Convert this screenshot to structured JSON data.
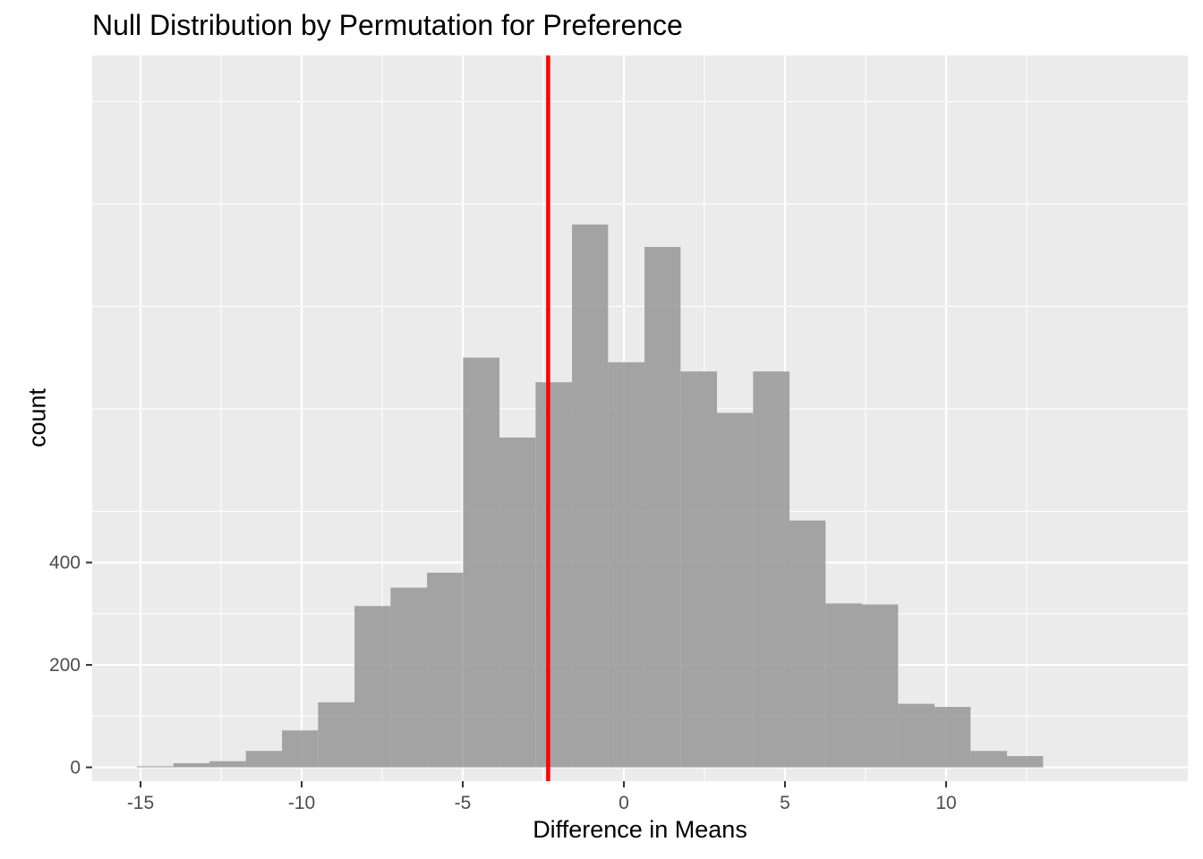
{
  "chart_data": {
    "type": "bar",
    "title": "Null Distribution by Permutation for Preference",
    "xlabel": "Difference in Means",
    "ylabel": "count",
    "xlim": [
      -16.5,
      17.5
    ],
    "ylim": [
      -27,
      1390
    ],
    "x_ticks": [
      -15,
      -10,
      -5,
      0,
      5,
      10
    ],
    "x_tick_labels": [
      "-15",
      "-10",
      "-5",
      "0",
      "5",
      "10"
    ],
    "y_ticks": [
      0,
      200,
      400
    ],
    "y_tick_labels": [
      "0",
      "200",
      "400"
    ],
    "grid": true,
    "bin_width": 1.125,
    "bins": [
      {
        "x0": -15.11,
        "x1": -13.98,
        "count": 2
      },
      {
        "x0": -13.98,
        "x1": -12.86,
        "count": 8
      },
      {
        "x0": -12.86,
        "x1": -11.73,
        "count": 12
      },
      {
        "x0": -11.73,
        "x1": -10.61,
        "count": 32
      },
      {
        "x0": -10.61,
        "x1": -9.49,
        "count": 72
      },
      {
        "x0": -9.49,
        "x1": -8.36,
        "count": 127
      },
      {
        "x0": -8.36,
        "x1": -7.24,
        "count": 315
      },
      {
        "x0": -7.24,
        "x1": -6.11,
        "count": 351
      },
      {
        "x0": -6.11,
        "x1": -4.99,
        "count": 380
      },
      {
        "x0": -4.99,
        "x1": -3.86,
        "count": 800
      },
      {
        "x0": -3.86,
        "x1": -2.74,
        "count": 644
      },
      {
        "x0": -2.74,
        "x1": -1.61,
        "count": 752
      },
      {
        "x0": -1.61,
        "x1": -0.49,
        "count": 1060
      },
      {
        "x0": -0.49,
        "x1": 0.64,
        "count": 791
      },
      {
        "x0": 0.64,
        "x1": 1.76,
        "count": 1016
      },
      {
        "x0": 1.76,
        "x1": 2.89,
        "count": 773
      },
      {
        "x0": 2.89,
        "x1": 4.01,
        "count": 692
      },
      {
        "x0": 4.01,
        "x1": 5.14,
        "count": 773
      },
      {
        "x0": 5.14,
        "x1": 6.26,
        "count": 482
      },
      {
        "x0": 6.26,
        "x1": 7.39,
        "count": 320
      },
      {
        "x0": 7.39,
        "x1": 8.51,
        "count": 318
      },
      {
        "x0": 8.51,
        "x1": 9.64,
        "count": 124
      },
      {
        "x0": 9.64,
        "x1": 10.76,
        "count": 118
      },
      {
        "x0": 10.76,
        "x1": 11.89,
        "count": 32
      },
      {
        "x0": 11.89,
        "x1": 13.01,
        "count": 22
      }
    ],
    "reference_line": {
      "x": -2.35,
      "color": "#ff0000"
    },
    "colors": {
      "panel": "#ebebeb",
      "grid_major": "#ffffff",
      "bar": "#999999",
      "bar_opacity": 0.88,
      "tick_mark": "#333333"
    }
  }
}
